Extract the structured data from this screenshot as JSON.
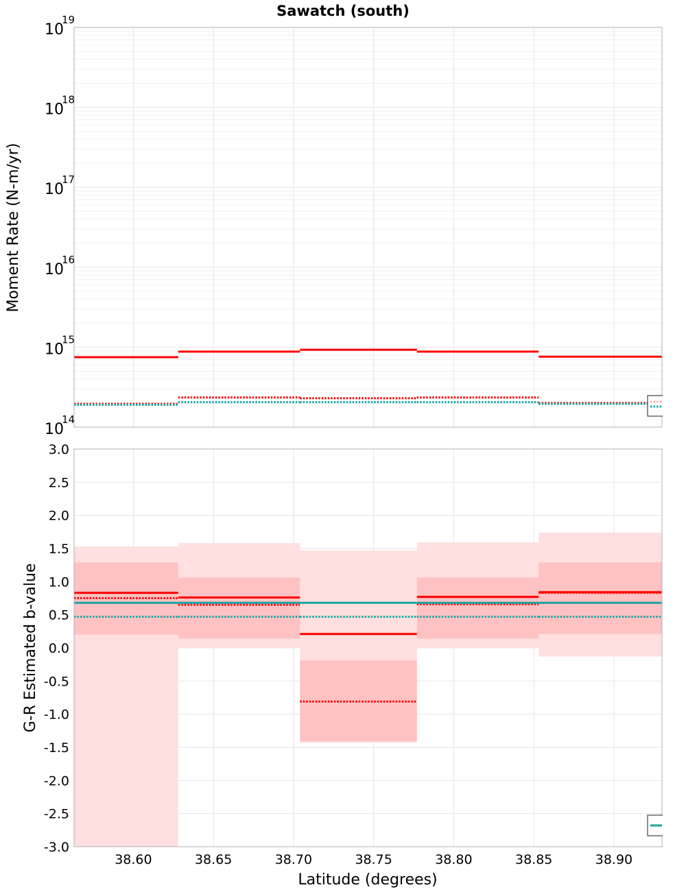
{
  "title": "Sawatch (south)",
  "colors": {
    "red": "#ff0000",
    "teal": "#1aa3a3",
    "band_outer": "#ffdfdf",
    "band_inner": "#ffc2c2",
    "grid": "#e6e6e6",
    "frame": "#b0b0b0",
    "legend_border": "#444444"
  },
  "x_axis": {
    "label": "Latitude (degrees)",
    "range": [
      38.563,
      38.93
    ],
    "ticks": [
      38.6,
      38.65,
      38.7,
      38.75,
      38.8,
      38.85,
      38.9
    ],
    "tick_labels": [
      "38.60",
      "38.65",
      "38.70",
      "38.75",
      "38.80",
      "38.85",
      "38.90"
    ]
  },
  "chart_data": [
    {
      "type": "line",
      "scale": "log",
      "ylabel": "Moment Rate (N-m/yr)",
      "ylim": [
        100000000000000.0,
        1e+19
      ],
      "y_tick_values": [
        100000000000000.0,
        1000000000000000.0,
        1e+16,
        1e+17,
        1e+18,
        1e+19
      ],
      "y_tick_bases": [
        "10",
        "10",
        "10",
        "10",
        "10",
        "10"
      ],
      "y_tick_exponents": [
        "14",
        "15",
        "16",
        "17",
        "18",
        "19"
      ],
      "grid": true,
      "legend": "bottom-right",
      "x_bins": [
        [
          38.563,
          38.628
        ],
        [
          38.628,
          38.704
        ],
        [
          38.704,
          38.777
        ],
        [
          38.777,
          38.853
        ],
        [
          38.853,
          38.93
        ]
      ],
      "series": [
        {
          "style": "solid-red",
          "values": [
            750000000000000.0,
            880000000000000.0,
            930000000000000.0,
            880000000000000.0,
            760000000000000.0
          ]
        },
        {
          "style": "dotted-red",
          "values": [
            195000000000000.0,
            235000000000000.0,
            230000000000000.0,
            235000000000000.0,
            200000000000000.0
          ]
        },
        {
          "style": "dotted-teal",
          "values": [
            190000000000000.0,
            205000000000000.0,
            205000000000000.0,
            205000000000000.0,
            195000000000000.0
          ]
        }
      ]
    },
    {
      "type": "line",
      "scale": "linear",
      "ylabel": "G-R Estimated b-value",
      "ylim": [
        -3.0,
        3.0
      ],
      "y_ticks": [
        -3.0,
        -2.5,
        -2.0,
        -1.5,
        -1.0,
        -0.5,
        0.0,
        0.5,
        1.0,
        1.5,
        2.0,
        2.5,
        3.0
      ],
      "y_tick_labels": [
        "-3.0",
        "-2.5",
        "-2.0",
        "-1.5",
        "-1.0",
        "-0.5",
        "0.0",
        "0.5",
        "1.0",
        "1.5",
        "2.0",
        "2.5",
        "3.0"
      ],
      "grid": true,
      "legend": "bottom-right",
      "x_bins": [
        [
          38.563,
          38.628
        ],
        [
          38.628,
          38.704
        ],
        [
          38.704,
          38.777
        ],
        [
          38.777,
          38.853
        ],
        [
          38.853,
          38.93
        ]
      ],
      "bands_outer": [
        [
          -3.0,
          1.53
        ],
        [
          0.0,
          1.58
        ],
        [
          -1.43,
          1.47
        ],
        [
          0.0,
          1.59
        ],
        [
          -0.13,
          1.74
        ]
      ],
      "bands_inner": [
        [
          0.2,
          1.29
        ],
        [
          0.14,
          1.06
        ],
        [
          -1.41,
          -0.19
        ],
        [
          0.14,
          1.06
        ],
        [
          0.21,
          1.29
        ]
      ],
      "series": [
        {
          "style": "solid-red",
          "values": [
            0.83,
            0.76,
            0.21,
            0.77,
            0.84
          ]
        },
        {
          "style": "dotted-red",
          "values": [
            0.75,
            0.65,
            -0.81,
            0.66,
            0.83
          ]
        },
        {
          "style": "solid-teal",
          "values": [
            0.68,
            0.68,
            0.68,
            0.68,
            0.68
          ]
        },
        {
          "style": "dotted-teal",
          "values": [
            0.47,
            0.47,
            0.47,
            0.47,
            0.47
          ]
        }
      ]
    }
  ]
}
